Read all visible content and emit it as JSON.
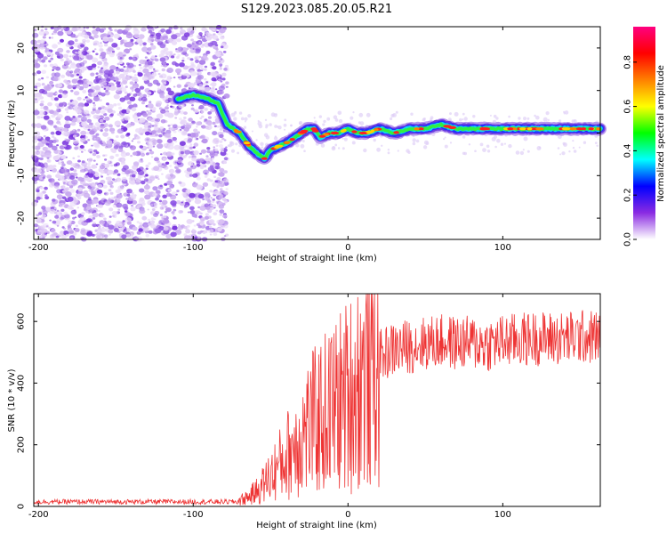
{
  "title": "S129.2023.085.20.05.R21",
  "chart_data": [
    {
      "type": "heatmap",
      "xlabel": "Height of straight line (km)",
      "ylabel": "Frequency (Hz)",
      "xlim": [
        -203,
        163
      ],
      "ylim": [
        -25,
        25
      ],
      "x_ticks": [
        -200,
        -100,
        0,
        100
      ],
      "y_ticks": [
        -20,
        -10,
        0,
        10,
        20
      ],
      "noise_region_x": [
        -203,
        -78
      ],
      "ridge": {
        "x": [
          -110,
          -100,
          -90,
          -84,
          -78,
          -70,
          -64,
          -58,
          -54,
          -50,
          -44,
          -38,
          -34,
          -30,
          -26,
          -22,
          -18,
          -12,
          -6,
          0,
          6,
          12,
          20,
          30,
          40,
          50,
          60,
          70,
          80,
          90,
          100,
          110,
          120,
          130,
          140,
          150,
          163
        ],
        "y": [
          8,
          9,
          8,
          7,
          2,
          0,
          -3,
          -5,
          -6,
          -4,
          -3,
          -2,
          -1,
          0,
          1,
          1,
          -1,
          0,
          0,
          1,
          0,
          0,
          1,
          0,
          1,
          1,
          2,
          1,
          1,
          1,
          1,
          1,
          1,
          1,
          1,
          1,
          1
        ]
      },
      "colorbar": {
        "label": "Normalized spectral amplitude",
        "ticks": [
          0.0,
          0.2,
          0.4,
          0.6,
          0.8
        ],
        "tick_labels": [
          "0.0",
          "0.2",
          "0.4",
          "0.6",
          "0.8"
        ],
        "colormap": [
          "#ffffff",
          "#8a2be2",
          "#0000ff",
          "#00ffff",
          "#00ff00",
          "#ffff00",
          "#ff8000",
          "#ff0000",
          "#ff0080"
        ]
      }
    },
    {
      "type": "line",
      "xlabel": "Height of straight line (km)",
      "ylabel": "SNR (10 * v/v)",
      "xlim": [
        -203,
        163
      ],
      "ylim": [
        0,
        690
      ],
      "x_ticks": [
        -200,
        -100,
        0,
        100
      ],
      "y_ticks": [
        0,
        200,
        400,
        600
      ],
      "color": "#ee3333",
      "series": [
        {
          "x": [
            -203,
            -180,
            -150,
            -120,
            -90,
            -72,
            -65,
            -60,
            -55,
            -50,
            -45,
            -40,
            -35,
            -30,
            -25,
            -20,
            -15,
            -10,
            -5,
            0,
            5,
            10,
            15,
            20,
            25,
            30,
            40,
            50,
            60,
            70,
            80,
            90,
            100,
            110,
            120,
            130,
            140,
            150,
            163
          ],
          "values": [
            15,
            15,
            15,
            15,
            15,
            15,
            30,
            45,
            70,
            100,
            130,
            160,
            200,
            230,
            260,
            280,
            300,
            320,
            340,
            360,
            390,
            420,
            450,
            480,
            500,
            510,
            520,
            530,
            535,
            530,
            530,
            525,
            535,
            540,
            545,
            545,
            545,
            550,
            550
          ]
        }
      ]
    }
  ]
}
